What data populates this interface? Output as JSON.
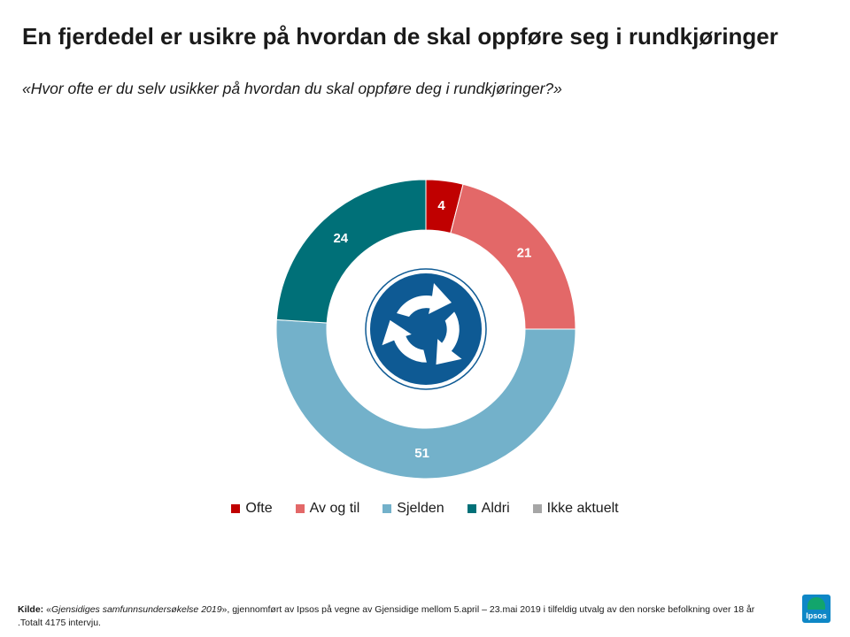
{
  "title": "En fjerdedel er usikre på hvordan de skal oppføre seg i rundkjøringer",
  "subtitle": "«Hvor ofte er du selv usikker på hvordan du skal oppføre deg i rundkjøringer?»",
  "chart_data": {
    "type": "pie",
    "variant": "donut",
    "slices": [
      {
        "name": "Ofte",
        "value": 4,
        "color": "#c00000"
      },
      {
        "name": "Av og til",
        "value": 21,
        "color": "#e36868"
      },
      {
        "name": "Sjelden",
        "value": 51,
        "color": "#73b1ca"
      },
      {
        "name": "Aldri",
        "value": 24,
        "color": "#007078"
      },
      {
        "name": "Ikke aktuelt",
        "value": 0,
        "color": "#a6a6a6"
      }
    ],
    "legend_position": "bottom",
    "center_icon": "roundabout-sign-icon"
  },
  "source": {
    "label": "Kilde:",
    "open_quote": " «",
    "name": "Gjensidiges samfunnsundersøkelse 2019",
    "text": "», gjennomført av Ipsos på vegne av Gjensidige mellom 5.april – 23.mai 2019 i tilfeldig utvalg av den norske befolkning over 18 år .Totalt 4175 intervju."
  },
  "logo": {
    "text": "Ipsos",
    "color": "#0e87c6"
  }
}
